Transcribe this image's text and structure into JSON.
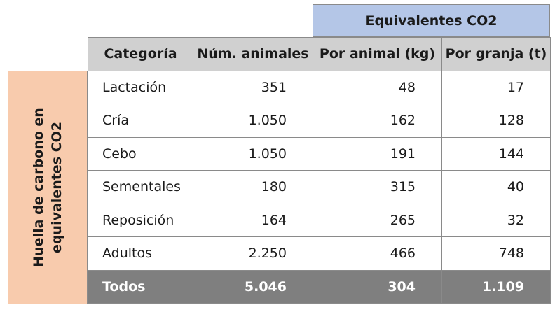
{
  "group_header": "Equivalentes CO2",
  "side_label": "Huella de carbono en equivalentes CO2",
  "columns": [
    "Categoría",
    "Núm. animales",
    "Por animal (kg)",
    "Por granja (t)"
  ],
  "rows": [
    [
      "Lactación",
      "351",
      "48",
      "17"
    ],
    [
      "Cría",
      "1.050",
      "162",
      "128"
    ],
    [
      "Cebo",
      "1.050",
      "191",
      "144"
    ],
    [
      "Sementales",
      "180",
      "315",
      "40"
    ],
    [
      "Reposición",
      "164",
      "265",
      "32"
    ],
    [
      "Adultos",
      "2.250",
      "466",
      "748"
    ]
  ],
  "total": [
    "Todos",
    "5.046",
    "304",
    "1.109"
  ],
  "colors": {
    "group_header_bg": "#b4c6e7",
    "side_label_bg": "#f8cbad",
    "header_bg": "#d0d0d0",
    "total_bg": "#7f7f7f"
  }
}
